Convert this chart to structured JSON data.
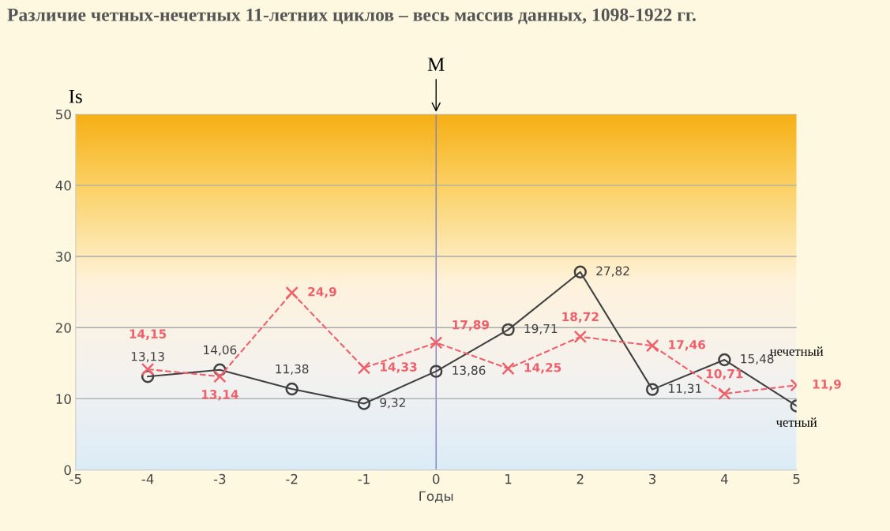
{
  "chart_data": {
    "type": "line",
    "title": "Различие четных-нечетных 11-летних циклов – весь массив данных, 1098-1922 гг.",
    "xlabel": "Годы",
    "ylabel": "Is",
    "x": [
      -4,
      -3,
      -2,
      -1,
      0,
      1,
      2,
      3,
      4,
      5
    ],
    "series": [
      {
        "name": "четный",
        "color": "#404040",
        "marker": "circle",
        "line_style": "solid",
        "values": [
          13.13,
          14.06,
          11.38,
          9.32,
          13.86,
          19.71,
          27.82,
          11.31,
          15.48,
          9.0
        ],
        "value_labels": [
          "13,13",
          "14,06",
          "11,38",
          "9,32",
          "13,86",
          "19,71",
          "27,82",
          "11,31",
          "15,48",
          null
        ]
      },
      {
        "name": "нечетный",
        "color": "#f0606a",
        "marker": "cross",
        "line_style": "dashed",
        "values": [
          14.15,
          13.14,
          24.9,
          14.33,
          17.89,
          14.25,
          18.72,
          17.46,
          10.71,
          11.9
        ],
        "value_labels": [
          "14,15",
          "13,14",
          "24,9",
          "14,33",
          "17,89",
          "14,25",
          "18,72",
          "17,46",
          "10,71",
          "11,9"
        ]
      }
    ],
    "xlim": [
      -5,
      5
    ],
    "xticks": [
      -5,
      -4,
      -3,
      -2,
      -1,
      0,
      1,
      2,
      3,
      4,
      5
    ],
    "ylim": [
      0,
      50
    ],
    "yticks": [
      0,
      10,
      20,
      30,
      40,
      50
    ],
    "grid": "y",
    "legend": "right",
    "ref_lines": [
      {
        "axis": "x",
        "value": 0,
        "label": "M",
        "color": "#8080c0"
      }
    ]
  }
}
